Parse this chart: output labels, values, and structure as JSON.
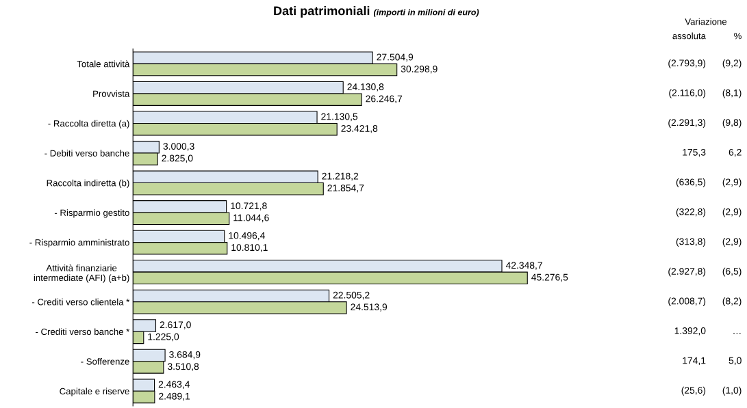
{
  "chart_data": {
    "type": "bar",
    "orientation": "horizontal",
    "title": "Dati patrimoniali",
    "subtitle": "(importi in milioni di euro)",
    "categories": [
      "Totale attività",
      "Provvista",
      "- Raccolta diretta (a)",
      "- Debiti verso banche",
      "Raccolta indiretta (b)",
      "- Risparmio gestito",
      "- Risparmio amministrato",
      "Attività finanziarie\nintermediate (AFI) (a+b)",
      "- Crediti verso clientela *",
      "- Crediti verso banche *",
      "- Sofferenze",
      "Capitale e riserve"
    ],
    "series": [
      {
        "color": "#dce6f2",
        "values": [
          27504.9,
          24130.8,
          21130.5,
          3000.3,
          21218.2,
          10721.8,
          10496.4,
          42348.7,
          22505.2,
          2617.0,
          3684.9,
          2463.4
        ],
        "value_labels": [
          "27.504,9",
          "24.130,8",
          "21.130,5",
          "3.000,3",
          "21.218,2",
          "10.721,8",
          "10.496,4",
          "42.348,7",
          "22.505,2",
          "2.617,0",
          "3.684,9",
          "2.463,4"
        ]
      },
      {
        "color": "#c4d79b",
        "values": [
          30298.9,
          26246.7,
          23421.8,
          2825.0,
          21854.7,
          11044.6,
          10810.1,
          45276.5,
          24513.9,
          1225.0,
          3510.8,
          2489.1
        ],
        "value_labels": [
          "30.298,9",
          "26.246,7",
          "23.421,8",
          "2.825,0",
          "21.854,7",
          "11.044,6",
          "10.810,1",
          "45.276,5",
          "24.513,9",
          "1.225,0",
          "3.510,8",
          "2.489,1"
        ]
      }
    ],
    "annotations": [
      "Variazione",
      "assoluta",
      "%",
      "(2.793,9)",
      "(9,2)",
      "(2.116,0)",
      "(8,1)",
      "(2.291,3)",
      "(9,8)",
      "175,3",
      "6,2",
      "(636,5)",
      "(2,9)",
      "(322,8)",
      "(2,9)",
      "(313,8)",
      "(2,9)",
      "(2.927,8)",
      "(6,5)",
      "(2.008,7)",
      "(8,2)",
      "1.392,0",
      "…",
      "174,1",
      "5,0",
      "(25,6)",
      "(1,0)"
    ]
  }
}
